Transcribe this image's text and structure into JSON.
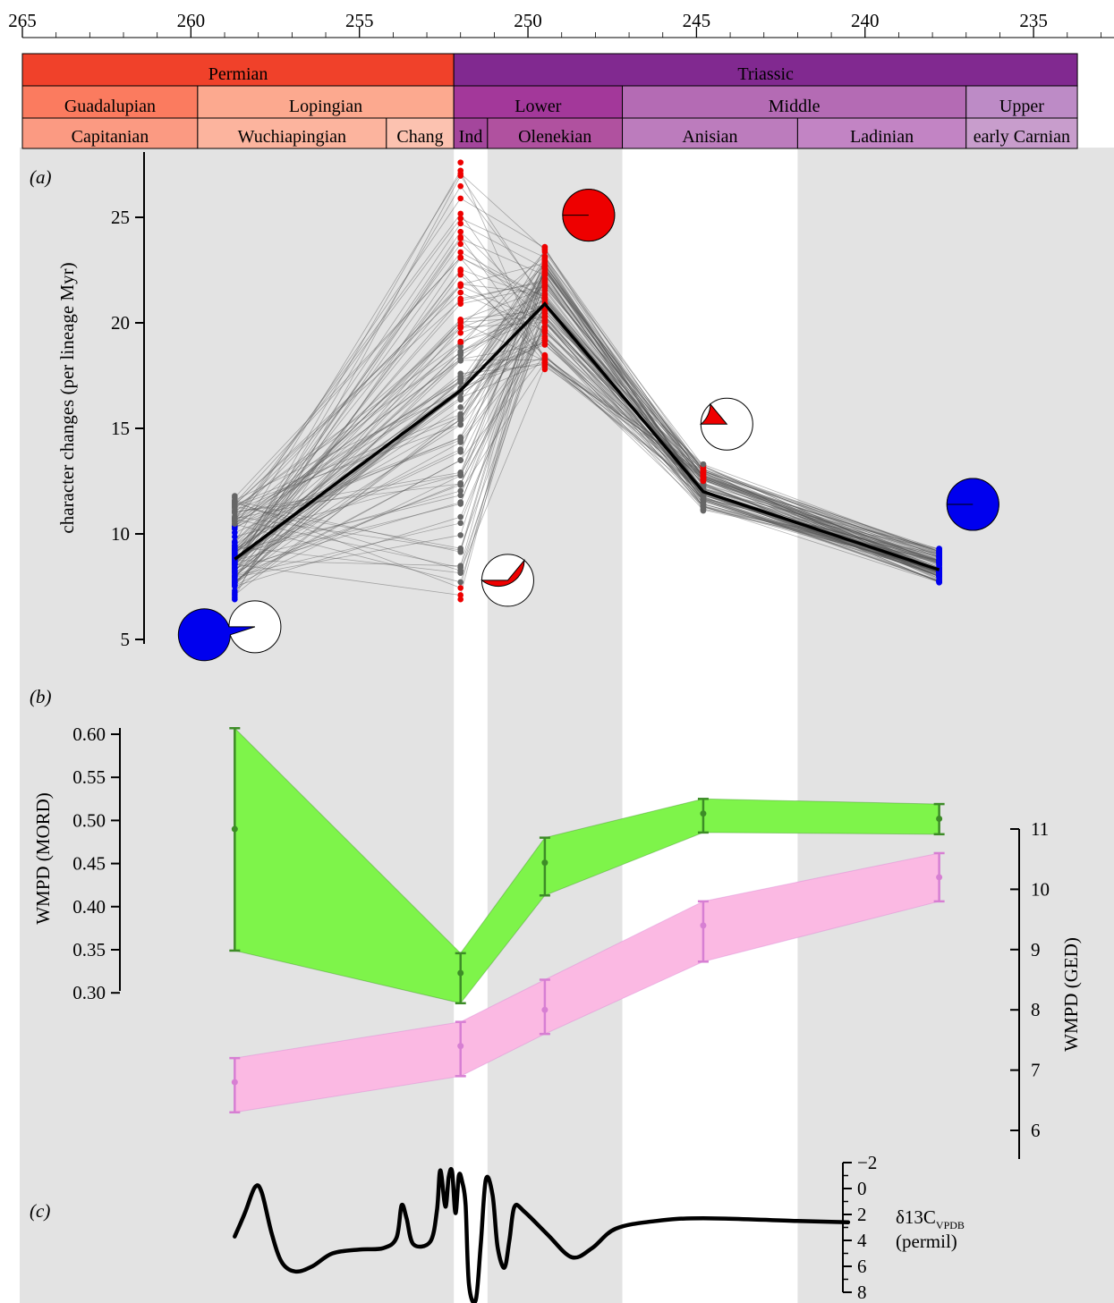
{
  "colors": {
    "permian": "#f0412a",
    "triassic": "#812990",
    "guadalupian": "#fb7b5f",
    "lopingian": "#fca98f",
    "lower": "#a3389a",
    "middle": "#b46bb4",
    "upper": "#bd8bc6",
    "capitanian": "#fb9a82",
    "wuchiapingian": "#fcb49e",
    "changhsingian": "#fcc2b0",
    "induan": "#a4469c",
    "olenekian": "#b0519f",
    "anisian": "#bc7cbd",
    "ladinian": "#c284c4",
    "carnian": "#c89dcc",
    "band_grey": "#e3e3e3",
    "series_grey": "#666666",
    "extinction_red": "#ee0000",
    "low_blue": "#0000ee",
    "mord_green": "#7ef44a",
    "mord_edge": "#3d8c27",
    "ged_pink": "#fbb9e3",
    "ged_edge": "#d77fd3"
  },
  "timescale": {
    "ticks": [
      "265",
      "260",
      "255",
      "250",
      "245",
      "240",
      "235"
    ],
    "periods": [
      {
        "name": "Permian",
        "start": 265,
        "end": 252.2,
        "color": "#f0412a"
      },
      {
        "name": "Triassic",
        "start": 252.2,
        "end": 233.7,
        "color": "#812990"
      }
    ],
    "epochs": [
      {
        "name": "Guadalupian",
        "start": 265,
        "end": 259.8,
        "color": "#fb7b5f"
      },
      {
        "name": "Lopingian",
        "start": 259.8,
        "end": 252.2,
        "color": "#fca98f"
      },
      {
        "name": "Lower",
        "start": 252.2,
        "end": 247.2,
        "color": "#a3389a"
      },
      {
        "name": "Middle",
        "start": 247.2,
        "end": 237,
        "color": "#b46bb4"
      },
      {
        "name": "Upper",
        "start": 237,
        "end": 233.7,
        "color": "#bd8bc6"
      }
    ],
    "stages": [
      {
        "name": "Capitanian",
        "start": 265,
        "end": 259.8,
        "color": "#fb9a82"
      },
      {
        "name": "Wuchiapingian",
        "start": 259.8,
        "end": 254.2,
        "color": "#fcb49e"
      },
      {
        "name": "Chang",
        "start": 254.2,
        "end": 252.2,
        "color": "#fcc2b0"
      },
      {
        "name": "Ind",
        "start": 252.2,
        "end": 251.2,
        "color": "#a4469c"
      },
      {
        "name": "Olenekian",
        "start": 251.2,
        "end": 247.2,
        "color": "#b0519f"
      },
      {
        "name": "Anisian",
        "start": 247.2,
        "end": 242,
        "color": "#bc7cbd"
      },
      {
        "name": "Ladinian",
        "start": 242,
        "end": 237,
        "color": "#c284c4"
      },
      {
        "name": "early Carnian",
        "start": 237,
        "end": 233.7,
        "color": "#c89dcc"
      }
    ]
  },
  "chart_data": [
    {
      "panel": "(a)",
      "type": "line",
      "ylabel": "character changes (per lineage Myr)",
      "yticks": [
        "5",
        "10",
        "15",
        "20",
        "25"
      ],
      "ylim": [
        5,
        27
      ],
      "xlim": [
        265,
        233.7
      ],
      "x": [
        258.7,
        252,
        249.5,
        244.8,
        237.8
      ],
      "series": [
        {
          "values": [
            8.8,
            16.8,
            20.9,
            12,
            8.3
          ]
        }
      ],
      "samples_per_bin": [
        {
          "x": 258.7,
          "min": 6.9,
          "max": 11.8,
          "color": "#0000ee"
        },
        {
          "x": 252,
          "min": 6.9,
          "max": 27.6,
          "color": "#ee0000"
        },
        {
          "x": 249.5,
          "min": 17.8,
          "max": 23.6,
          "color": "#ee0000"
        },
        {
          "x": 244.8,
          "min": 11.1,
          "max": 13.3,
          "color": "#666666"
        },
        {
          "x": 237.8,
          "min": 7.7,
          "max": 9.3,
          "color": "#0000ee"
        }
      ],
      "pies": [
        {
          "x": 258.1,
          "y": 5.6,
          "fraction": 0.95,
          "color": "#0000ee"
        },
        {
          "x": 250.6,
          "y": 7.8,
          "fraction": 0.36,
          "color": "#ee0000"
        },
        {
          "x": 248.2,
          "y": 25.1,
          "fraction": 1,
          "color": "#ee0000"
        },
        {
          "x": 244.1,
          "y": 15.2,
          "fraction": 0.14,
          "color": "#ee0000"
        },
        {
          "x": 236.8,
          "y": 11.4,
          "fraction": 1,
          "color": "#0000ee"
        }
      ]
    },
    {
      "panel": "(b)",
      "type": "area",
      "ylabel": "WMPD (MORD)",
      "yticks": [
        "0.60",
        "0.55",
        "0.50",
        "0.45",
        "0.40",
        "0.35",
        "0.30"
      ],
      "ylim": [
        0.29,
        0.61
      ],
      "x": [
        258.7,
        252,
        249.5,
        244.8,
        237.8
      ],
      "series": [
        {
          "mean": [
            0.49,
            0.323,
            0.451,
            0.508,
            0.502
          ],
          "lower": [
            0.349,
            0.288,
            0.413,
            0.486,
            0.484
          ],
          "upper": [
            0.607,
            0.346,
            0.48,
            0.525,
            0.519
          ],
          "color": "#7ef44a"
        }
      ]
    },
    {
      "panel": "(b)",
      "type": "area",
      "ylabel": "WMPD (GED)",
      "yticks": [
        "11",
        "10",
        "9",
        "8",
        "7",
        "6"
      ],
      "ylim": [
        6,
        11
      ],
      "x": [
        258.7,
        252,
        249.5,
        244.8,
        237.8
      ],
      "series": [
        {
          "mean": [
            6.8,
            7.4,
            8,
            9.4,
            10.2
          ],
          "lower": [
            6.3,
            6.9,
            7.6,
            8.8,
            9.8
          ],
          "upper": [
            7.2,
            7.8,
            8.5,
            9.8,
            10.6
          ],
          "color": "#fbb9e3"
        }
      ]
    },
    {
      "panel": "(c)",
      "type": "line",
      "ylabel_main": "δ13C",
      "ylabel_sub": "VPDB",
      "ylabel_unit": "(permil)",
      "yticks": [
        "−2",
        "0",
        "2",
        "4",
        "6",
        "8"
      ],
      "ylim": [
        -2,
        8
      ],
      "series": [
        {
          "points": [
            [
              258.7,
              3.7
            ],
            [
              258.4,
              1.9
            ],
            [
              258.1,
              -0.1
            ],
            [
              257.9,
              0.3
            ],
            [
              257.6,
              3.5
            ],
            [
              257.3,
              5.7
            ],
            [
              256.9,
              6.4
            ],
            [
              256.4,
              6
            ],
            [
              255.8,
              5
            ],
            [
              255,
              4.7
            ],
            [
              254.3,
              4.6
            ],
            [
              253.9,
              3.8
            ],
            [
              253.75,
              1.3
            ],
            [
              253.6,
              2.3
            ],
            [
              253.4,
              4.3
            ],
            [
              252.9,
              4.1
            ],
            [
              252.7,
              1.7
            ],
            [
              252.6,
              -1.4
            ],
            [
              252.45,
              1.4
            ],
            [
              252.35,
              -0.9
            ],
            [
              252.25,
              -1.3
            ],
            [
              252.15,
              1.9
            ],
            [
              252.05,
              -1
            ],
            [
              251.95,
              -0.5
            ],
            [
              251.85,
              1.3
            ],
            [
              251.75,
              7.4
            ],
            [
              251.55,
              8.6
            ],
            [
              251.4,
              4.3
            ],
            [
              251.25,
              -0.7
            ],
            [
              251.05,
              0.5
            ],
            [
              250.9,
              4.5
            ],
            [
              250.7,
              6.1
            ],
            [
              250.55,
              4
            ],
            [
              250.4,
              1.4
            ],
            [
              250.1,
              1.8
            ],
            [
              249.4,
              3.6
            ],
            [
              248.7,
              5.3
            ],
            [
              248.1,
              4.6
            ],
            [
              247.4,
              3.1
            ],
            [
              246.2,
              2.5
            ],
            [
              244.8,
              2.3
            ],
            [
              242,
              2.5
            ],
            [
              240.5,
              2.6
            ]
          ]
        }
      ]
    }
  ]
}
